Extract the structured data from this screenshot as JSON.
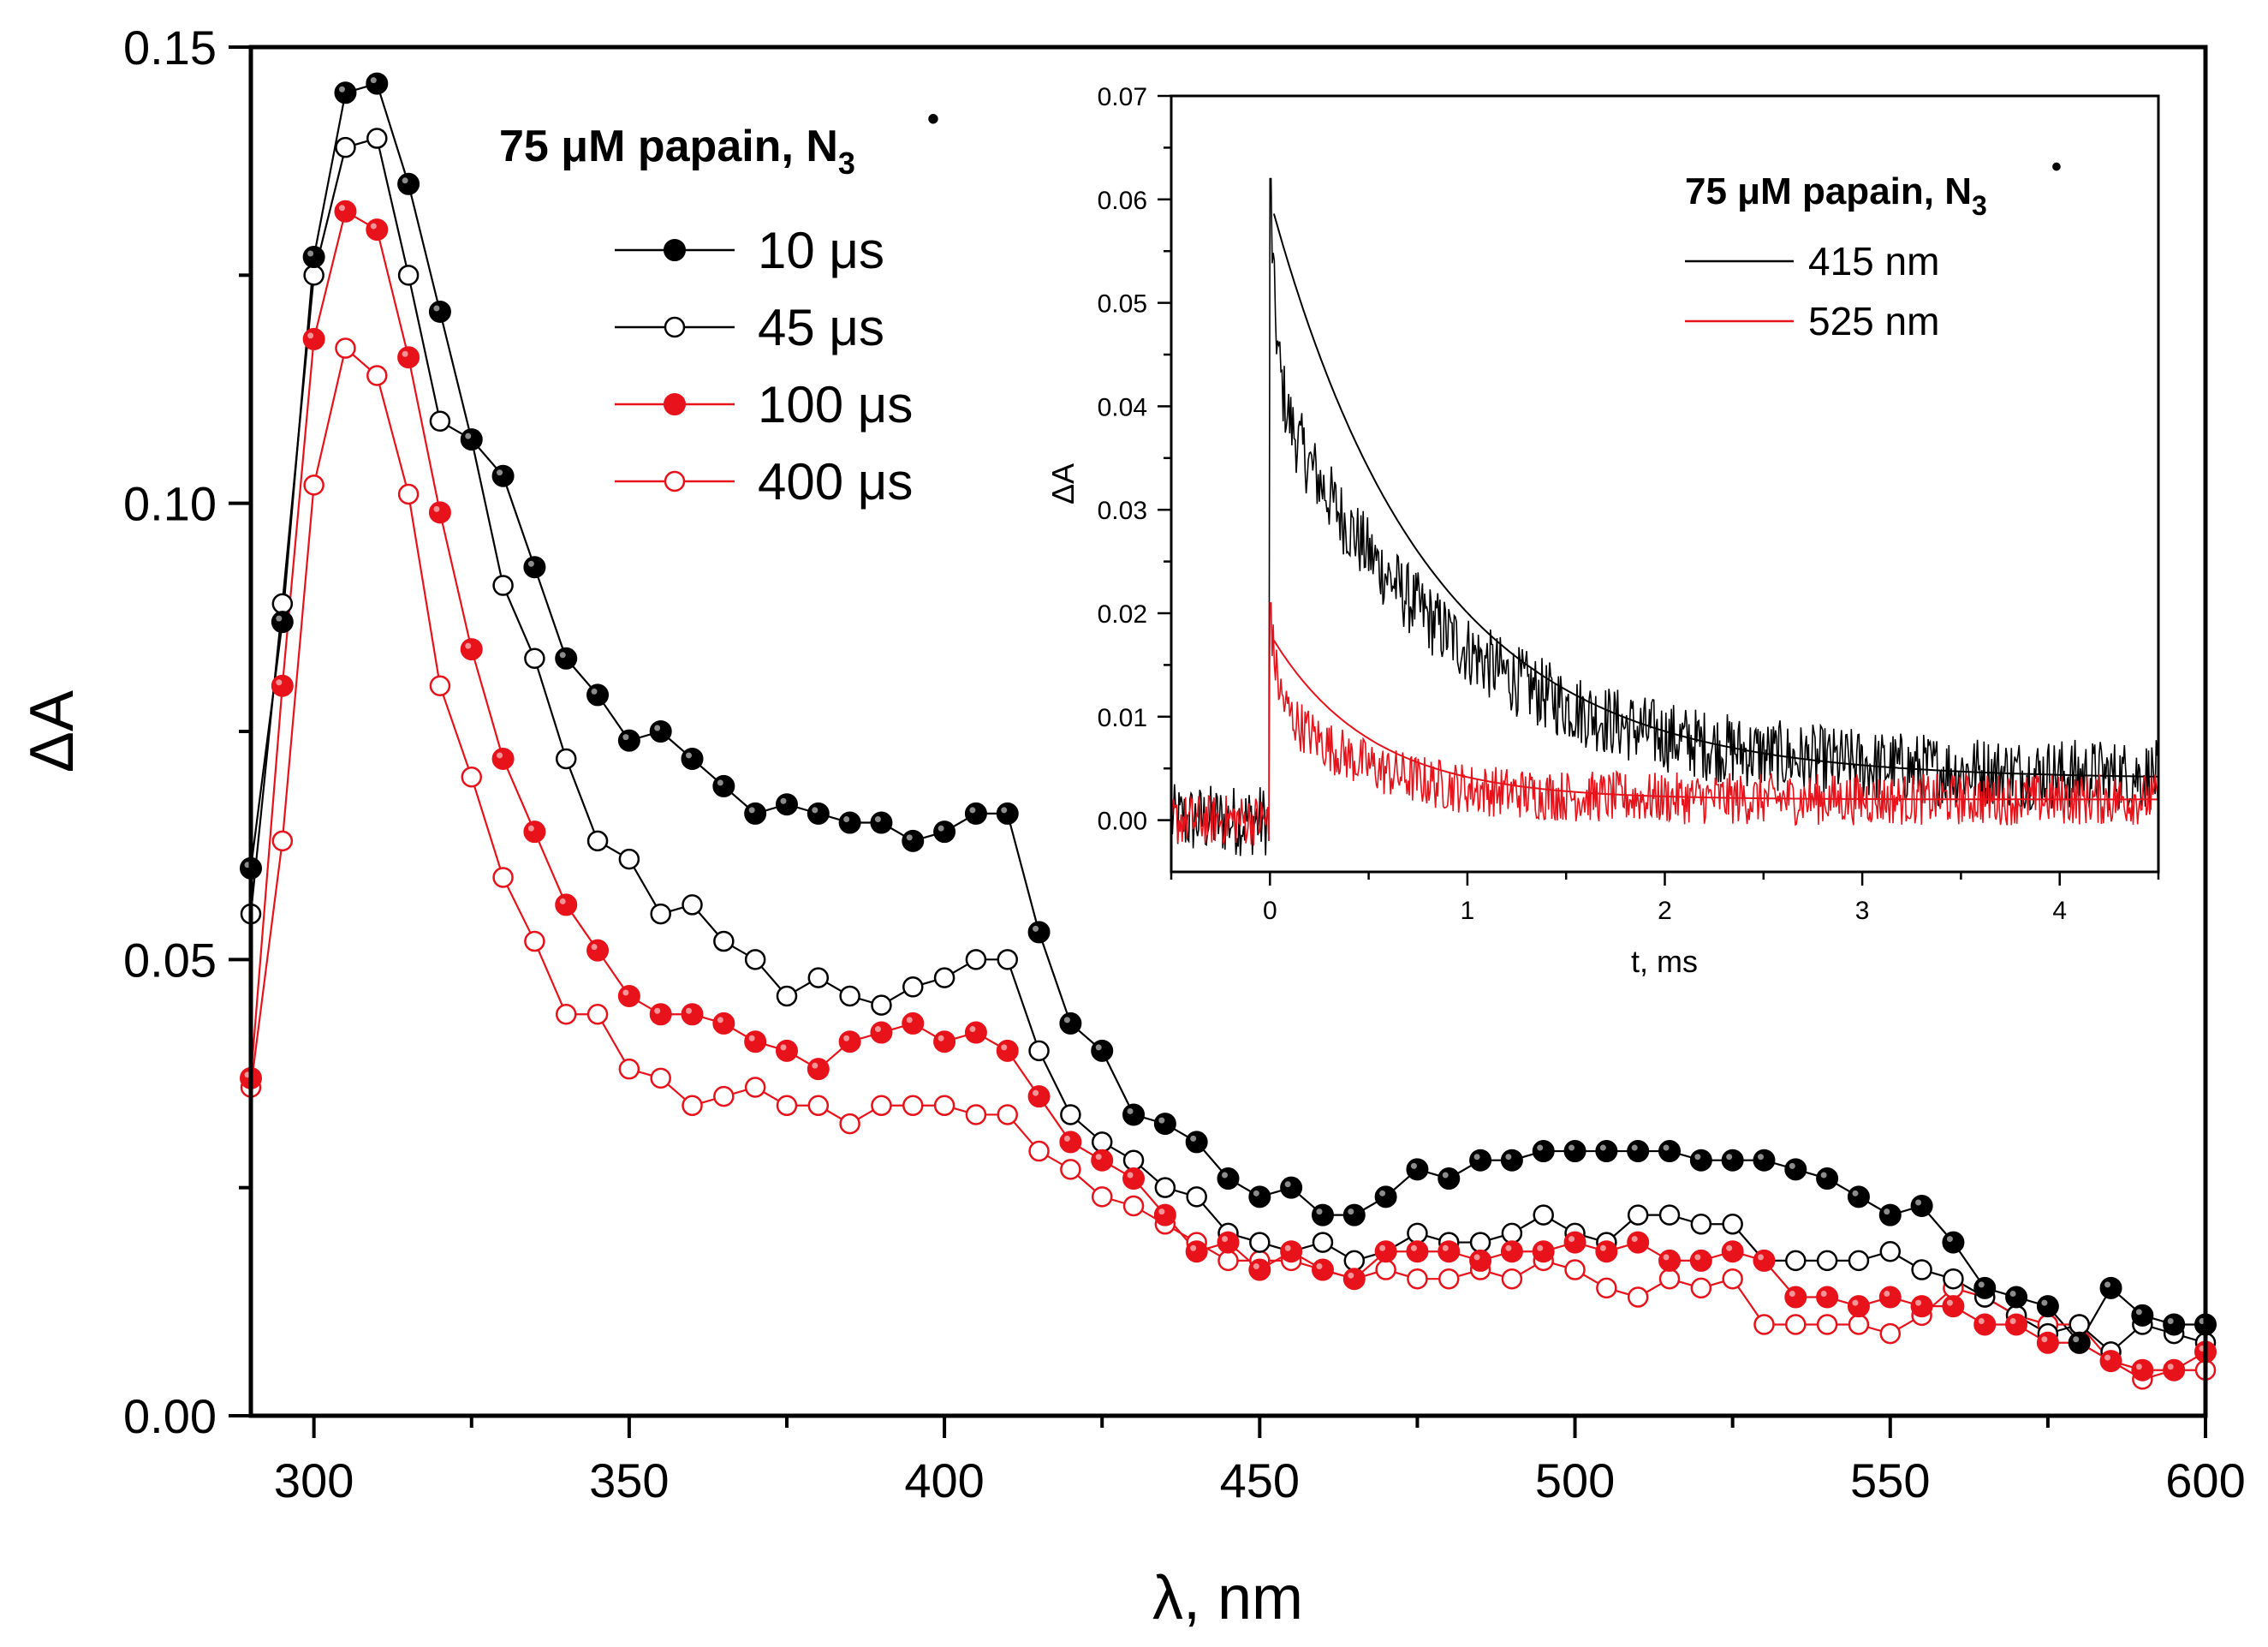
{
  "colors": {
    "black": "#000000",
    "red": "#e8121a",
    "background": "#ffffff"
  },
  "chart_data": [
    {
      "type": "scatter",
      "title": "",
      "xlabel": "λ, nm",
      "ylabel": "ΔA",
      "xlim": [
        290,
        600
      ],
      "ylim": [
        0.0,
        0.15
      ],
      "x_ticks": [
        300,
        350,
        400,
        450,
        500,
        550,
        600
      ],
      "x_tick_labels": [
        "300",
        "350",
        "400",
        "450",
        "500",
        "550",
        "600"
      ],
      "y_ticks": [
        0.0,
        0.05,
        0.1,
        0.15
      ],
      "y_tick_labels": [
        "0.00",
        "0.05",
        "0.10",
        "0.15"
      ],
      "legend_title": {
        "main": "75 μM papain, N",
        "sub": "3",
        "sup": "•"
      },
      "legend_position": "top-left",
      "x": [
        290,
        295,
        300,
        305,
        310,
        315,
        320,
        325,
        330,
        335,
        340,
        345,
        350,
        355,
        360,
        365,
        370,
        375,
        380,
        385,
        390,
        395,
        400,
        405,
        410,
        415,
        420,
        425,
        430,
        435,
        440,
        445,
        450,
        455,
        460,
        465,
        470,
        475,
        480,
        485,
        490,
        495,
        500,
        505,
        510,
        515,
        520,
        525,
        530,
        535,
        540,
        545,
        550,
        555,
        560,
        565,
        570,
        575,
        580,
        585,
        590,
        595,
        600
      ],
      "series": [
        {
          "name": "10 μs",
          "color": "#000000",
          "marker": "filled",
          "values": [
            0.06,
            0.087,
            0.127,
            0.145,
            0.146,
            0.135,
            0.121,
            0.107,
            0.103,
            0.093,
            0.083,
            0.079,
            0.074,
            0.075,
            0.072,
            0.069,
            0.066,
            0.067,
            0.066,
            0.065,
            0.065,
            0.063,
            0.064,
            0.066,
            0.066,
            0.053,
            0.043,
            0.04,
            0.033,
            0.032,
            0.03,
            0.026,
            0.024,
            0.025,
            0.022,
            0.022,
            0.024,
            0.027,
            0.026,
            0.028,
            0.028,
            0.029,
            0.029,
            0.029,
            0.029,
            0.029,
            0.028,
            0.028,
            0.028,
            0.027,
            0.026,
            0.024,
            0.022,
            0.023,
            0.019,
            0.014,
            0.013,
            0.012,
            0.008,
            0.014,
            0.011,
            0.01,
            0.01
          ]
        },
        {
          "name": "45 μs",
          "color": "#000000",
          "marker": "open",
          "values": [
            0.055,
            0.089,
            0.125,
            0.139,
            0.14,
            0.125,
            0.109,
            0.107,
            0.091,
            0.083,
            0.072,
            0.063,
            0.061,
            0.055,
            0.056,
            0.052,
            0.05,
            0.046,
            0.048,
            0.046,
            0.045,
            0.047,
            0.048,
            0.05,
            0.05,
            0.04,
            0.033,
            0.03,
            0.028,
            0.025,
            0.024,
            0.02,
            0.019,
            0.018,
            0.019,
            0.017,
            0.018,
            0.02,
            0.019,
            0.019,
            0.02,
            0.022,
            0.02,
            0.019,
            0.022,
            0.022,
            0.021,
            0.021,
            0.017,
            0.017,
            0.017,
            0.017,
            0.018,
            0.016,
            0.015,
            0.013,
            0.011,
            0.009,
            0.01,
            0.007,
            0.01,
            0.009,
            0.008
          ]
        },
        {
          "name": "100 μs",
          "color": "#e8121a",
          "marker": "filled",
          "values": [
            0.037,
            0.08,
            0.118,
            0.132,
            0.13,
            0.116,
            0.099,
            0.084,
            0.072,
            0.064,
            0.056,
            0.051,
            0.046,
            0.044,
            0.044,
            0.043,
            0.041,
            0.04,
            0.038,
            0.041,
            0.042,
            0.043,
            0.041,
            0.042,
            0.04,
            0.035,
            0.03,
            0.028,
            0.026,
            0.022,
            0.018,
            0.019,
            0.016,
            0.018,
            0.016,
            0.015,
            0.018,
            0.018,
            0.018,
            0.017,
            0.018,
            0.018,
            0.019,
            0.018,
            0.019,
            0.017,
            0.017,
            0.018,
            0.017,
            0.013,
            0.013,
            0.012,
            0.013,
            0.012,
            0.012,
            0.01,
            0.01,
            0.008,
            0.008,
            0.006,
            0.005,
            0.005,
            0.007
          ]
        },
        {
          "name": "400 μs",
          "color": "#e8121a",
          "marker": "open",
          "values": [
            0.036,
            0.063,
            0.102,
            0.117,
            0.114,
            0.101,
            0.08,
            0.07,
            0.059,
            0.052,
            0.044,
            0.044,
            0.038,
            0.037,
            0.034,
            0.035,
            0.036,
            0.034,
            0.034,
            0.032,
            0.034,
            0.034,
            0.034,
            0.033,
            0.033,
            0.029,
            0.027,
            0.024,
            0.023,
            0.021,
            0.019,
            0.017,
            0.017,
            0.017,
            0.016,
            0.015,
            0.016,
            0.015,
            0.015,
            0.016,
            0.015,
            0.017,
            0.016,
            0.014,
            0.013,
            0.015,
            0.014,
            0.015,
            0.01,
            0.01,
            0.01,
            0.01,
            0.009,
            0.011,
            0.014,
            0.013,
            0.011,
            0.01,
            0.01,
            0.006,
            0.004,
            0.005,
            0.005
          ]
        }
      ]
    },
    {
      "type": "line",
      "title": "inset",
      "xlabel": "t, ms",
      "ylabel": "ΔA",
      "xlim": [
        -0.5,
        4.5
      ],
      "ylim": [
        -0.005,
        0.07
      ],
      "x_ticks": [
        0,
        1,
        2,
        3,
        4
      ],
      "x_tick_labels": [
        "0",
        "1",
        "2",
        "3",
        "4"
      ],
      "y_ticks": [
        0.0,
        0.01,
        0.02,
        0.03,
        0.04,
        0.05,
        0.06,
        0.07
      ],
      "y_tick_labels": [
        "0.00",
        "0.01",
        "0.02",
        "0.03",
        "0.04",
        "0.05",
        "0.06",
        "0.07"
      ],
      "legend_title": {
        "main": "75 μM papain, N",
        "sub": "3",
        "sup": "•"
      },
      "legend_position": "top-right",
      "series": [
        {
          "name": "415 nm",
          "color": "#000000",
          "kinetics": {
            "baseline": 0.0,
            "t0": 0.0,
            "peak": 0.062,
            "fast_amp": 0.02,
            "fast_tau": 0.03,
            "slow_amp": 0.038,
            "slow_tau": 0.9,
            "plateau": 0.004,
            "noise": 0.0035
          },
          "fit": {
            "peak": 0.06,
            "plateau": 0.004,
            "amp": 0.056,
            "tau": 0.8
          }
        },
        {
          "name": "525 nm",
          "color": "#e8121a",
          "kinetics": {
            "baseline": 0.0,
            "t0": 0.0,
            "peak": 0.021,
            "fast_amp": 0.009,
            "fast_tau": 0.03,
            "slow_amp": 0.01,
            "slow_tau": 0.45,
            "plateau": 0.002,
            "noise": 0.0025
          },
          "fit": {
            "peak": 0.018,
            "plateau": 0.002,
            "amp": 0.016,
            "tau": 0.5
          }
        }
      ]
    }
  ]
}
